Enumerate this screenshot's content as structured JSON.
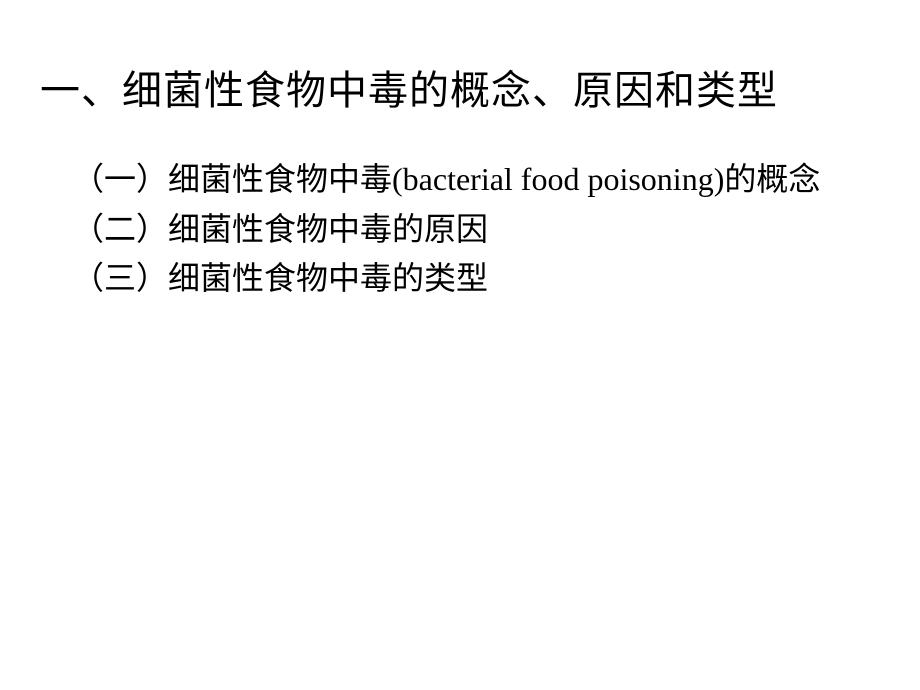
{
  "slide": {
    "title": "一、细菌性食物中毒的概念、原因和类型",
    "items": [
      {
        "text": "（一）细菌性食物中毒(bacterial food poisoning)的概念",
        "multiline": true
      },
      {
        "text": "（二）细菌性食物中毒的原因",
        "multiline": false
      },
      {
        "text": "（三）细菌性食物中毒的类型",
        "multiline": false
      }
    ],
    "background_color": "#ffffff",
    "title_color": "#000000",
    "title_fontsize": 40,
    "body_color": "#000000",
    "body_fontsize": 32
  }
}
